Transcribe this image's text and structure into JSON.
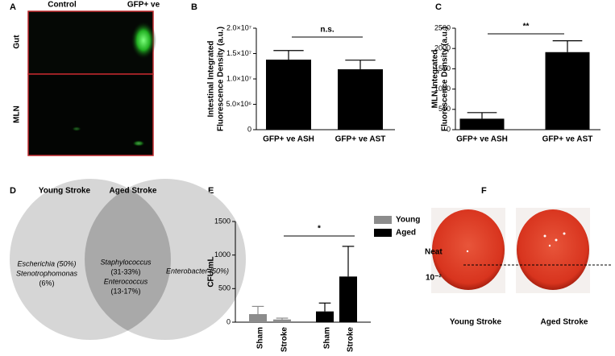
{
  "panel_labels": [
    "A",
    "B",
    "C",
    "D",
    "E",
    "F"
  ],
  "microscopy": {
    "columns": [
      "Control",
      "GFP+ ve"
    ],
    "rows": [
      "Gut",
      "MLN"
    ]
  },
  "chart_data": [
    {
      "type": "bar",
      "ylabel": [
        "Intestinal Integrated",
        "Fluorescence Density (a.u.)"
      ],
      "categories": [
        "GFP+ ve ASH",
        "GFP+ ve AST"
      ],
      "values": [
        13800000,
        11900000
      ],
      "errors": [
        1800000,
        1800000
      ],
      "color": "#000000",
      "ylim": [
        0,
        20000000
      ],
      "yticks": [
        0,
        {
          "value": 5000000,
          "label": "5.0×10⁶"
        },
        {
          "value": 10000000,
          "label": "1.0×10⁷"
        },
        {
          "value": 15000000,
          "label": "1.5×10⁷"
        },
        {
          "value": 20000000,
          "label": "2.0×10⁷"
        }
      ],
      "annotation": "n.s."
    },
    {
      "type": "bar",
      "ylabel": [
        "MLN Integrated",
        "Fluorescence Density (a.u.)"
      ],
      "categories": [
        "GFP+ ve ASH",
        "GFP+ ve AST"
      ],
      "values": [
        270,
        1910
      ],
      "errors": [
        150,
        280
      ],
      "color": "#000000",
      "ylim": [
        0,
        2500
      ],
      "yticks": [
        0,
        500,
        1000,
        1500,
        2000,
        2500
      ],
      "annotation": "**"
    },
    {
      "type": "bar",
      "ylabel": [
        "CFU/mL"
      ],
      "categories": [
        "Sham",
        "Stroke",
        "Sham",
        "Stroke"
      ],
      "series": [
        {
          "name": "Young",
          "color": "#8c8c8c",
          "values": [
            120,
            40,
            null,
            null
          ],
          "errors": [
            115,
            20,
            null,
            null
          ]
        },
        {
          "name": "Aged",
          "color": "#000000",
          "values": [
            null,
            null,
            160,
            680
          ],
          "errors": [
            null,
            null,
            125,
            450
          ]
        }
      ],
      "ylim": [
        0,
        1500
      ],
      "yticks": [
        0,
        500,
        1000,
        1500
      ],
      "legend": "top-right",
      "annotation": "*"
    }
  ],
  "venn": {
    "left_title": "Young Stroke",
    "right_title": "Aged Stroke",
    "left": [
      "Escherichia (50%)",
      "Stenotrophomonas",
      "(6%)"
    ],
    "middle": [
      "Staphylococcus",
      "(31-33%)",
      "Enterococcus",
      "(13-17%)"
    ],
    "right": [
      "Enterobacter (50%)"
    ]
  },
  "plates": {
    "dilutions": [
      "Neat",
      "10⁻²"
    ],
    "captions": [
      "Young Stroke",
      "Aged Stroke"
    ]
  }
}
